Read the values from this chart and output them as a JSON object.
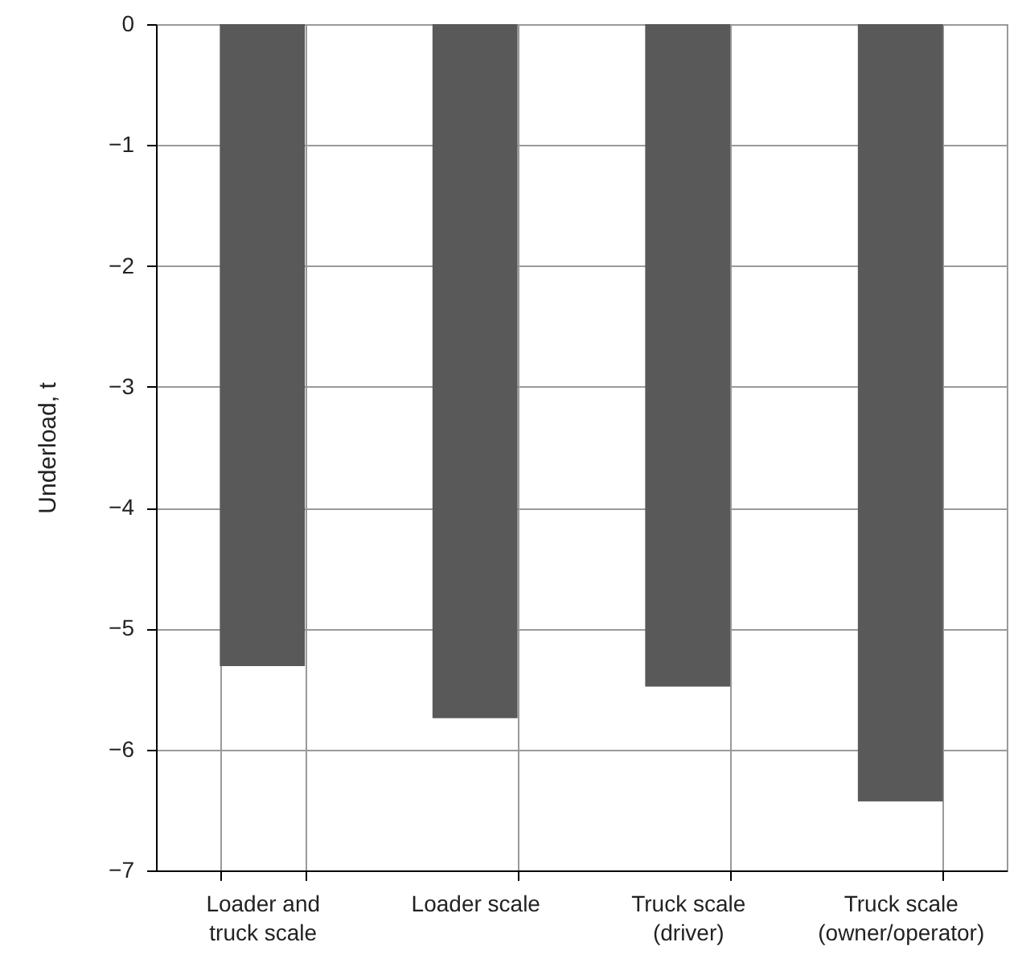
{
  "chart_data": {
    "type": "bar",
    "ylabel": "Underload, t",
    "categories": [
      "Loader and truck scale",
      "Loader scale",
      "Truck scale (driver)",
      "Truck scale (owner/operator)"
    ],
    "values": [
      -5.31,
      -5.74,
      -5.48,
      -6.43
    ],
    "color": "#595959",
    "ylim": [
      -7,
      0
    ],
    "yticks": [
      -7,
      -6,
      -5,
      -4,
      -3,
      -2,
      -1,
      0
    ],
    "grid": true
  }
}
